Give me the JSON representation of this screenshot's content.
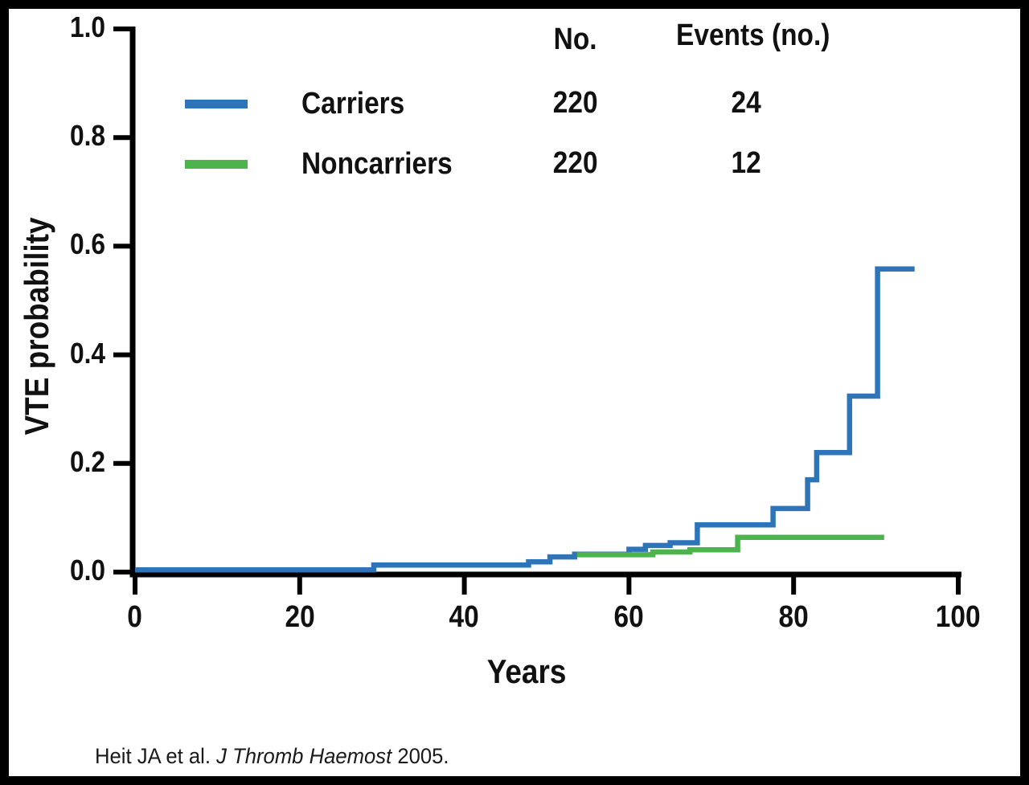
{
  "colors": {
    "carriers_blue": "#2e74b8",
    "noncarriers_green": "#4db34c",
    "axis_black": "#000000",
    "frame_black": "#000000",
    "background": "#ffffff"
  },
  "chart_data": {
    "type": "line",
    "subtype": "step-survival",
    "title": "",
    "xlabel": "Years",
    "ylabel": "VTE probability",
    "xlim": [
      0,
      100
    ],
    "ylim": [
      0,
      1.0
    ],
    "x_ticks": [
      0,
      20,
      40,
      60,
      80,
      100
    ],
    "x_tick_labels": [
      "0",
      "20",
      "40",
      "60",
      "80",
      "100"
    ],
    "y_ticks": [
      1.0,
      0.8,
      0.6,
      0.4,
      0.2,
      0.0
    ],
    "y_tick_labels": [
      "1.0",
      "0.8",
      "0.6",
      "0.4",
      "0.2",
      "0.0"
    ],
    "grid": false,
    "legend_position": "top-center-inside",
    "series": [
      {
        "name": "Carriers",
        "color": "#2e74b8",
        "n": "220",
        "events": "24",
        "points": [
          [
            0,
            0.004
          ],
          [
            29,
            0.013
          ],
          [
            47.8,
            0.019
          ],
          [
            50.4,
            0.028
          ],
          [
            53.4,
            0.033
          ],
          [
            60,
            0.042
          ],
          [
            62,
            0.049
          ],
          [
            65,
            0.054
          ],
          [
            68.3,
            0.087
          ],
          [
            77.5,
            0.117
          ],
          [
            81.7,
            0.17
          ],
          [
            82.8,
            0.22
          ],
          [
            86.8,
            0.324
          ],
          [
            90.2,
            0.558
          ],
          [
            94.7,
            0.558
          ]
        ]
      },
      {
        "name": "Noncarriers",
        "color": "#4db34c",
        "n": "220",
        "events": "12",
        "points": [
          [
            53.7,
            0.032
          ],
          [
            62.9,
            0.037
          ],
          [
            67.4,
            0.041
          ],
          [
            73.2,
            0.064
          ],
          [
            91,
            0.064
          ]
        ]
      }
    ]
  },
  "legend": {
    "no_header": "No.",
    "events_header": "Events (no.)"
  },
  "citation": {
    "prefix": "Heit JA et al. ",
    "journal": "J Thromb Haemost",
    "suffix": " 2005."
  }
}
